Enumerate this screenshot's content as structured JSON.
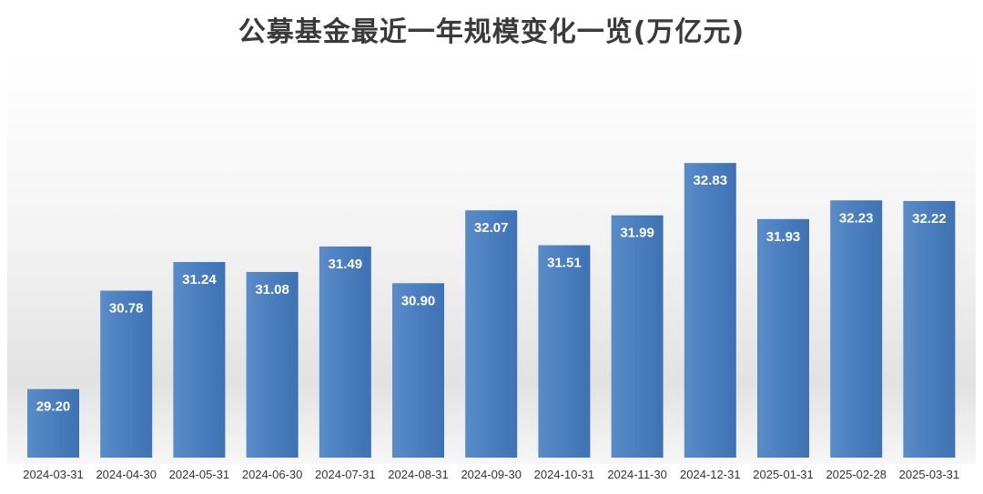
{
  "chart_data": {
    "type": "bar",
    "title": "公募基金最近一年规模变化一览(万亿元)",
    "xlabel": "",
    "ylabel": "",
    "categories": [
      "2024-03-31",
      "2024-04-30",
      "2024-05-31",
      "2024-06-30",
      "2024-07-31",
      "2024-08-31",
      "2024-09-30",
      "2024-10-31",
      "2024-11-30",
      "2024-12-31",
      "2025-01-31",
      "2025-02-28",
      "2025-03-31"
    ],
    "values": [
      29.2,
      30.78,
      31.24,
      31.08,
      31.49,
      30.9,
      32.07,
      31.51,
      31.99,
      32.83,
      31.93,
      32.23,
      32.22
    ],
    "value_labels": [
      "29.20",
      "30.78",
      "31.24",
      "31.08",
      "31.49",
      "30.90",
      "32.07",
      "31.51",
      "31.99",
      "32.83",
      "31.93",
      "32.23",
      "32.22"
    ],
    "ylim": [
      28.1,
      33.3
    ],
    "grid": false,
    "legend": "none",
    "bar_color": "#4a7ebf"
  }
}
